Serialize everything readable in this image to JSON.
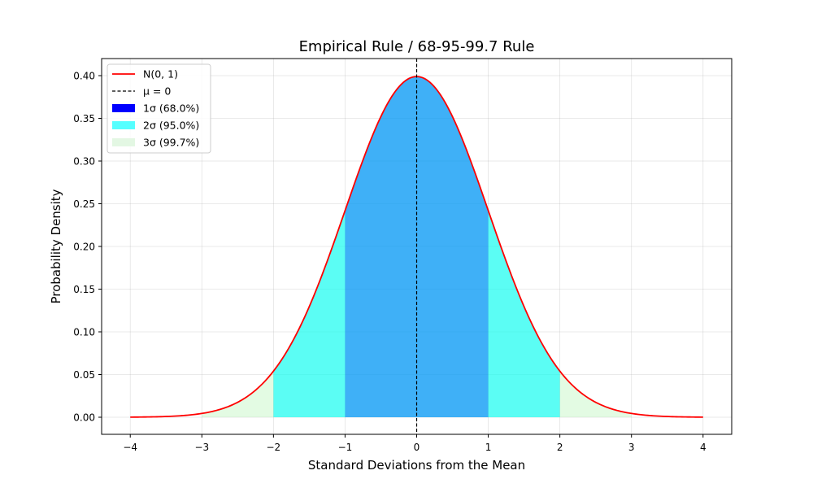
{
  "chart_data": {
    "type": "area",
    "title": "Empirical Rule / 68-95-99.7 Rule",
    "xlabel": "Standard Deviations from the Mean",
    "ylabel": "Probability Density",
    "xlim": [
      -4.4,
      4.4
    ],
    "ylim": [
      -0.02,
      0.42
    ],
    "x_ticks": [
      -4,
      -3,
      -2,
      -1,
      0,
      1,
      2,
      3,
      4
    ],
    "x_tick_labels": [
      "−4",
      "−3",
      "−2",
      "−1",
      "0",
      "1",
      "2",
      "3",
      "4"
    ],
    "y_ticks": [
      0.0,
      0.05,
      0.1,
      0.15,
      0.2,
      0.25,
      0.3,
      0.35,
      0.4
    ],
    "y_tick_labels": [
      "0.00",
      "0.05",
      "0.10",
      "0.15",
      "0.20",
      "0.25",
      "0.30",
      "0.35",
      "0.40"
    ],
    "grid": true,
    "legend_position": "top-left",
    "curve": {
      "name": "N(0, 1)",
      "color": "#ff0000",
      "distribution": "normal",
      "mean": 0,
      "sd": 1,
      "x_range": [
        -4,
        4
      ],
      "peak_density": 0.399
    },
    "mean_line": {
      "name": "μ = 0",
      "x": 0,
      "color": "#000000",
      "style": "dashed"
    },
    "regions": [
      {
        "name": "3σ (99.7%)",
        "from": -3,
        "to": 3,
        "color": "#90ee90",
        "alpha": 0.25
      },
      {
        "name": "2σ (95.0%)",
        "from": -2,
        "to": 2,
        "color": "#00ffff",
        "alpha": 0.6
      },
      {
        "name": "1σ (68.0%)",
        "from": -1,
        "to": 1,
        "color": "#0000ff",
        "alpha": 0.3
      }
    ],
    "legend": [
      {
        "label": "N(0, 1)",
        "kind": "line",
        "color": "#ff0000"
      },
      {
        "label": "μ = 0",
        "kind": "dashed",
        "color": "#000000"
      },
      {
        "label": "1σ (68.0%)",
        "kind": "patch",
        "color": "#0000ff"
      },
      {
        "label": "2σ (95.0%)",
        "kind": "patch",
        "color": "#55ffff"
      },
      {
        "label": "3σ (99.7%)",
        "kind": "patch",
        "color": "#e3f7e3"
      }
    ]
  }
}
